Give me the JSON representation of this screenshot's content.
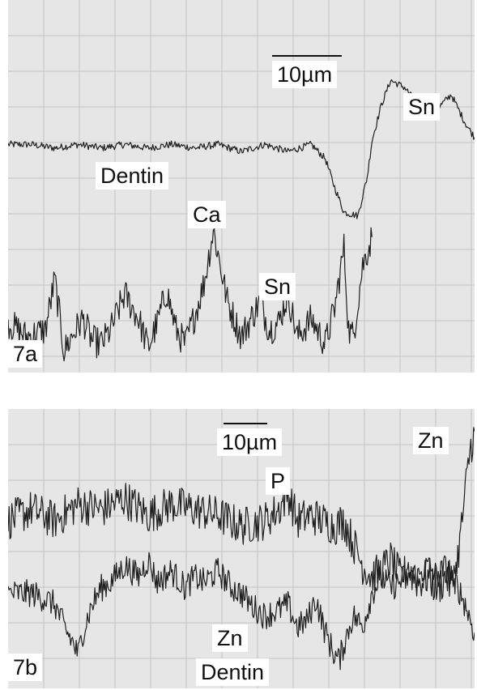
{
  "colors": {
    "background": "#ffffff",
    "panel": "#e6e6e6",
    "grid": "#c4c4c4",
    "trace": "#1e1e1e"
  },
  "chart_data": [
    {
      "type": "line",
      "panel_label": "7a",
      "scale_bar": "10µm",
      "labels": {
        "region": "Dentin",
        "ca_trace": "Ca",
        "sn_upper": "Sn",
        "sn_lower": "Sn"
      },
      "y_range": [
        0,
        100
      ],
      "series": [
        {
          "id": "ca",
          "x": [
            0,
            5,
            10,
            15,
            20,
            25,
            30,
            35,
            40,
            45,
            50,
            55,
            60,
            65,
            68,
            70,
            72,
            75,
            77,
            78,
            80,
            82,
            85,
            88,
            90,
            92,
            95,
            98,
            100
          ],
          "values": [
            64,
            64,
            63,
            64,
            63,
            64,
            63,
            64,
            63,
            64,
            62,
            64,
            62,
            64,
            60,
            52,
            45,
            44,
            55,
            65,
            75,
            82,
            80,
            75,
            72,
            74,
            78,
            70,
            66
          ]
        },
        {
          "id": "sn",
          "x": [
            0,
            4,
            8,
            10,
            12,
            14,
            16,
            18,
            20,
            22,
            25,
            28,
            30,
            32,
            34,
            36,
            38,
            40,
            42,
            44,
            47,
            50,
            52,
            54,
            56,
            58,
            60,
            62,
            65,
            68,
            70,
            72,
            73,
            74,
            76,
            78
          ],
          "values": [
            14,
            10,
            12,
            26,
            6,
            11,
            15,
            9,
            8,
            12,
            22,
            15,
            7,
            14,
            23,
            12,
            8,
            16,
            25,
            40,
            20,
            10,
            15,
            20,
            12,
            14,
            22,
            10,
            15,
            8,
            18,
            35,
            12,
            10,
            30,
            38
          ]
        }
      ]
    },
    {
      "type": "line",
      "panel_label": "7b",
      "scale_bar": "10µm",
      "labels": {
        "p_trace": "P",
        "zn_upper": "Zn",
        "zn_lower": "Zn",
        "region": "Dentin"
      },
      "y_range": [
        0,
        100
      ],
      "series": [
        {
          "id": "p",
          "x": [
            0,
            5,
            10,
            15,
            20,
            25,
            30,
            35,
            40,
            45,
            50,
            55,
            58,
            60,
            62,
            65,
            70,
            72,
            74,
            76,
            78,
            80,
            82,
            84,
            86,
            88,
            90,
            92,
            94,
            95,
            96,
            97,
            98,
            99,
            100
          ],
          "values": [
            60,
            64,
            60,
            66,
            64,
            68,
            62,
            66,
            64,
            62,
            58,
            60,
            64,
            70,
            60,
            62,
            58,
            60,
            52,
            44,
            40,
            42,
            46,
            40,
            42,
            38,
            40,
            36,
            40,
            36,
            42,
            55,
            70,
            85,
            92
          ]
        },
        {
          "id": "zn",
          "x": [
            0,
            5,
            8,
            10,
            12,
            14,
            15,
            16,
            18,
            20,
            22,
            25,
            28,
            30,
            32,
            35,
            38,
            40,
            42,
            45,
            48,
            50,
            52,
            55,
            58,
            60,
            62,
            64,
            66,
            68,
            70,
            71,
            72,
            74,
            76,
            78,
            80,
            82,
            84,
            86,
            88,
            90,
            92,
            94,
            96,
            98,
            100
          ],
          "values": [
            34,
            34,
            32,
            30,
            22,
            16,
            12,
            20,
            30,
            36,
            38,
            44,
            40,
            46,
            38,
            42,
            36,
            40,
            38,
            42,
            36,
            34,
            30,
            26,
            28,
            30,
            22,
            24,
            32,
            20,
            12,
            10,
            16,
            26,
            22,
            34,
            40,
            36,
            38,
            42,
            40,
            44,
            40,
            44,
            38,
            30,
            20
          ]
        }
      ]
    }
  ]
}
